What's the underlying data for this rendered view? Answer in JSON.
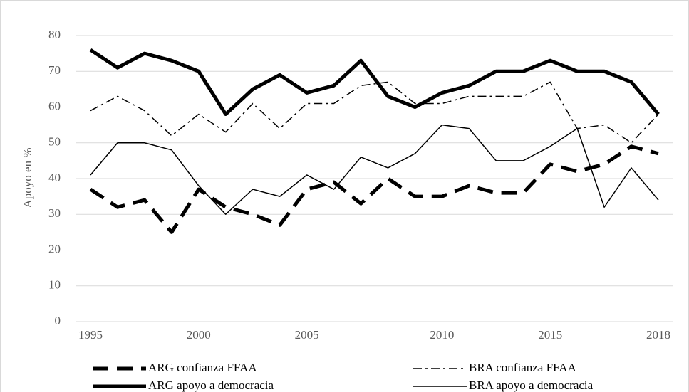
{
  "chart_data": {
    "type": "line",
    "y_label": "Apoyo en %",
    "categories": [
      "1995",
      null,
      null,
      null,
      "2000",
      null,
      null,
      null,
      "2005",
      null,
      null,
      null,
      null,
      "2010",
      null,
      null,
      null,
      "2015",
      null,
      null,
      null,
      "2018"
    ],
    "ylim": [
      0,
      80
    ],
    "yticks": [
      0,
      10,
      20,
      30,
      40,
      50,
      60,
      70,
      80
    ],
    "grid": true,
    "series": [
      {
        "name": "ARG confianza FFAA",
        "color": "#000000",
        "values": [
          37,
          32,
          34,
          25,
          37,
          32,
          30,
          27,
          37,
          39,
          33,
          40,
          35,
          35,
          38,
          36,
          36,
          44,
          42,
          44,
          49,
          47
        ]
      },
      {
        "name": "BRA confianza FFAA",
        "color": "#000000",
        "values": [
          59,
          63,
          59,
          52,
          58,
          53,
          61,
          54,
          61,
          61,
          66,
          67,
          61,
          61,
          63,
          63,
          63,
          67,
          54,
          55,
          50,
          58
        ]
      },
      {
        "name": "ARG apoyo a democracia",
        "color": "#000000",
        "values": [
          76,
          71,
          75,
          73,
          70,
          58,
          65,
          69,
          64,
          66,
          73,
          63,
          60,
          64,
          66,
          70,
          70,
          73,
          70,
          70,
          67,
          58
        ]
      },
      {
        "name": "BRA apoyo a democracia",
        "color": "#000000",
        "values": [
          41,
          50,
          50,
          48,
          38,
          30,
          37,
          35,
          41,
          37,
          46,
          43,
          47,
          55,
          54,
          45,
          45,
          49,
          54,
          32,
          43,
          34
        ]
      }
    ]
  }
}
